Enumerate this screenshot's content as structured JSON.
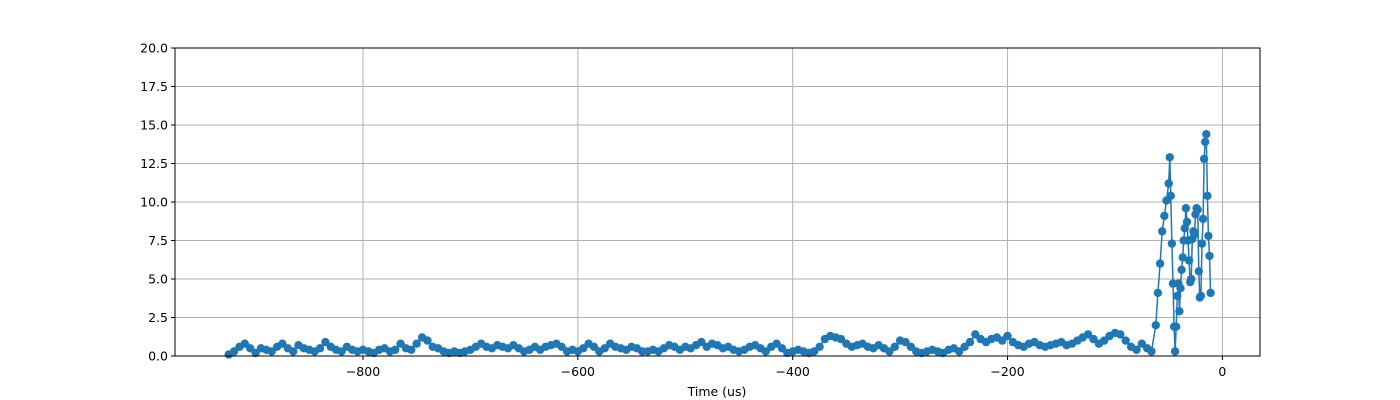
{
  "chart_data": {
    "type": "line",
    "title": "",
    "xlabel": "Time (us)",
    "ylabel": "",
    "xlim": [
      -975,
      35
    ],
    "ylim": [
      0,
      20
    ],
    "x_ticks": [
      -800,
      -600,
      -400,
      -200,
      0
    ],
    "x_tick_labels": [
      "−800",
      "−600",
      "−400",
      "−200",
      "0"
    ],
    "y_ticks": [
      0,
      2.5,
      5,
      7.5,
      10,
      12.5,
      15,
      17.5,
      20
    ],
    "y_tick_labels": [
      "0.0",
      "2.5",
      "5.0",
      "7.5",
      "10.0",
      "12.5",
      "15.0",
      "17.5",
      "20.0"
    ],
    "grid": true,
    "legend": "none",
    "marker": "circle",
    "colors": {
      "series": "#1f77b4",
      "grid": "#b0b0b0",
      "axis": "#000000"
    },
    "series": [
      {
        "name": "",
        "points": [
          [
            -925,
            0.1
          ],
          [
            -920,
            0.3
          ],
          [
            -915,
            0.6
          ],
          [
            -910,
            0.8
          ],
          [
            -905,
            0.5
          ],
          [
            -900,
            0.2
          ],
          [
            -895,
            0.5
          ],
          [
            -890,
            0.4
          ],
          [
            -885,
            0.3
          ],
          [
            -880,
            0.6
          ],
          [
            -875,
            0.8
          ],
          [
            -870,
            0.5
          ],
          [
            -865,
            0.3
          ],
          [
            -860,
            0.7
          ],
          [
            -855,
            0.5
          ],
          [
            -850,
            0.4
          ],
          [
            -845,
            0.3
          ],
          [
            -840,
            0.5
          ],
          [
            -835,
            0.9
          ],
          [
            -830,
            0.6
          ],
          [
            -825,
            0.4
          ],
          [
            -820,
            0.3
          ],
          [
            -815,
            0.6
          ],
          [
            -810,
            0.4
          ],
          [
            -805,
            0.3
          ],
          [
            -800,
            0.4
          ],
          [
            -795,
            0.3
          ],
          [
            -790,
            0.2
          ],
          [
            -785,
            0.4
          ],
          [
            -780,
            0.5
          ],
          [
            -775,
            0.3
          ],
          [
            -770,
            0.4
          ],
          [
            -765,
            0.8
          ],
          [
            -760,
            0.5
          ],
          [
            -755,
            0.4
          ],
          [
            -750,
            0.8
          ],
          [
            -745,
            1.2
          ],
          [
            -740,
            1.0
          ],
          [
            -735,
            0.6
          ],
          [
            -730,
            0.5
          ],
          [
            -725,
            0.3
          ],
          [
            -720,
            0.2
          ],
          [
            -715,
            0.3
          ],
          [
            -710,
            0.2
          ],
          [
            -705,
            0.3
          ],
          [
            -700,
            0.4
          ],
          [
            -695,
            0.6
          ],
          [
            -690,
            0.8
          ],
          [
            -685,
            0.6
          ],
          [
            -680,
            0.5
          ],
          [
            -675,
            0.7
          ],
          [
            -670,
            0.6
          ],
          [
            -665,
            0.5
          ],
          [
            -660,
            0.7
          ],
          [
            -655,
            0.5
          ],
          [
            -650,
            0.3
          ],
          [
            -645,
            0.4
          ],
          [
            -640,
            0.6
          ],
          [
            -635,
            0.4
          ],
          [
            -630,
            0.6
          ],
          [
            -625,
            0.7
          ],
          [
            -620,
            0.8
          ],
          [
            -615,
            0.6
          ],
          [
            -610,
            0.3
          ],
          [
            -605,
            0.4
          ],
          [
            -600,
            0.3
          ],
          [
            -595,
            0.5
          ],
          [
            -590,
            0.8
          ],
          [
            -585,
            0.6
          ],
          [
            -580,
            0.3
          ],
          [
            -575,
            0.5
          ],
          [
            -570,
            0.8
          ],
          [
            -565,
            0.6
          ],
          [
            -560,
            0.5
          ],
          [
            -555,
            0.4
          ],
          [
            -550,
            0.6
          ],
          [
            -545,
            0.5
          ],
          [
            -540,
            0.3
          ],
          [
            -535,
            0.3
          ],
          [
            -530,
            0.4
          ],
          [
            -525,
            0.3
          ],
          [
            -520,
            0.5
          ],
          [
            -515,
            0.7
          ],
          [
            -510,
            0.6
          ],
          [
            -505,
            0.4
          ],
          [
            -500,
            0.6
          ],
          [
            -495,
            0.5
          ],
          [
            -490,
            0.7
          ],
          [
            -485,
            0.9
          ],
          [
            -480,
            0.6
          ],
          [
            -475,
            0.8
          ],
          [
            -470,
            0.7
          ],
          [
            -465,
            0.5
          ],
          [
            -460,
            0.6
          ],
          [
            -455,
            0.4
          ],
          [
            -450,
            0.3
          ],
          [
            -445,
            0.4
          ],
          [
            -440,
            0.6
          ],
          [
            -435,
            0.7
          ],
          [
            -430,
            0.5
          ],
          [
            -425,
            0.3
          ],
          [
            -420,
            0.6
          ],
          [
            -415,
            0.8
          ],
          [
            -410,
            0.5
          ],
          [
            -405,
            0.2
          ],
          [
            -400,
            0.3
          ],
          [
            -395,
            0.4
          ],
          [
            -390,
            0.3
          ],
          [
            -385,
            0.2
          ],
          [
            -380,
            0.3
          ],
          [
            -375,
            0.6
          ],
          [
            -370,
            1.1
          ],
          [
            -365,
            1.3
          ],
          [
            -360,
            1.2
          ],
          [
            -355,
            1.1
          ],
          [
            -350,
            0.8
          ],
          [
            -345,
            0.6
          ],
          [
            -340,
            0.7
          ],
          [
            -335,
            0.8
          ],
          [
            -330,
            0.6
          ],
          [
            -325,
            0.5
          ],
          [
            -320,
            0.7
          ],
          [
            -315,
            0.5
          ],
          [
            -310,
            0.3
          ],
          [
            -305,
            0.6
          ],
          [
            -300,
            1.0
          ],
          [
            -295,
            0.9
          ],
          [
            -290,
            0.6
          ],
          [
            -285,
            0.3
          ],
          [
            -280,
            0.2
          ],
          [
            -275,
            0.3
          ],
          [
            -270,
            0.4
          ],
          [
            -265,
            0.3
          ],
          [
            -260,
            0.2
          ],
          [
            -255,
            0.4
          ],
          [
            -250,
            0.5
          ],
          [
            -245,
            0.3
          ],
          [
            -240,
            0.6
          ],
          [
            -235,
            0.9
          ],
          [
            -230,
            1.4
          ],
          [
            -225,
            1.1
          ],
          [
            -220,
            0.9
          ],
          [
            -215,
            1.1
          ],
          [
            -210,
            1.2
          ],
          [
            -205,
            1.0
          ],
          [
            -200,
            1.3
          ],
          [
            -195,
            0.9
          ],
          [
            -190,
            0.7
          ],
          [
            -185,
            0.6
          ],
          [
            -180,
            0.8
          ],
          [
            -175,
            0.9
          ],
          [
            -170,
            0.7
          ],
          [
            -165,
            0.6
          ],
          [
            -160,
            0.7
          ],
          [
            -155,
            0.8
          ],
          [
            -150,
            0.9
          ],
          [
            -145,
            0.7
          ],
          [
            -140,
            0.8
          ],
          [
            -135,
            1.0
          ],
          [
            -130,
            1.2
          ],
          [
            -125,
            1.4
          ],
          [
            -120,
            1.1
          ],
          [
            -115,
            0.8
          ],
          [
            -110,
            1.0
          ],
          [
            -105,
            1.3
          ],
          [
            -100,
            1.5
          ],
          [
            -95,
            1.4
          ],
          [
            -90,
            1.0
          ],
          [
            -85,
            0.6
          ],
          [
            -80,
            0.4
          ],
          [
            -75,
            0.8
          ],
          [
            -70,
            0.5
          ],
          [
            -66,
            0.3
          ],
          [
            -62,
            2.0
          ],
          [
            -60,
            4.1
          ],
          [
            -58,
            6.0
          ],
          [
            -56,
            8.1
          ],
          [
            -54,
            9.1
          ],
          [
            -52,
            10.1
          ],
          [
            -50,
            11.2
          ],
          [
            -49,
            12.9
          ],
          [
            -48,
            10.4
          ],
          [
            -47,
            7.3
          ],
          [
            -46,
            4.7
          ],
          [
            -45,
            1.9
          ],
          [
            -44,
            0.3
          ],
          [
            -43,
            1.9
          ],
          [
            -42,
            3.9
          ],
          [
            -41,
            4.7
          ],
          [
            -40,
            2.9
          ],
          [
            -39,
            4.4
          ],
          [
            -38,
            5.6
          ],
          [
            -37,
            6.4
          ],
          [
            -36,
            7.5
          ],
          [
            -35,
            8.3
          ],
          [
            -34,
            9.6
          ],
          [
            -33,
            8.7
          ],
          [
            -32,
            7.5
          ],
          [
            -31,
            6.2
          ],
          [
            -30,
            4.8
          ],
          [
            -29,
            5.0
          ],
          [
            -28,
            7.6
          ],
          [
            -27,
            8.1
          ],
          [
            -26,
            7.9
          ],
          [
            -25,
            9.2
          ],
          [
            -24,
            9.6
          ],
          [
            -23,
            9.5
          ],
          [
            -22,
            5.5
          ],
          [
            -21,
            3.8
          ],
          [
            -20,
            3.9
          ],
          [
            -19,
            7.3
          ],
          [
            -18,
            8.9
          ],
          [
            -17,
            12.8
          ],
          [
            -16,
            13.9
          ],
          [
            -15,
            14.4
          ],
          [
            -14,
            10.4
          ],
          [
            -13,
            7.8
          ],
          [
            -12,
            6.5
          ],
          [
            -11,
            4.1
          ]
        ]
      }
    ]
  }
}
